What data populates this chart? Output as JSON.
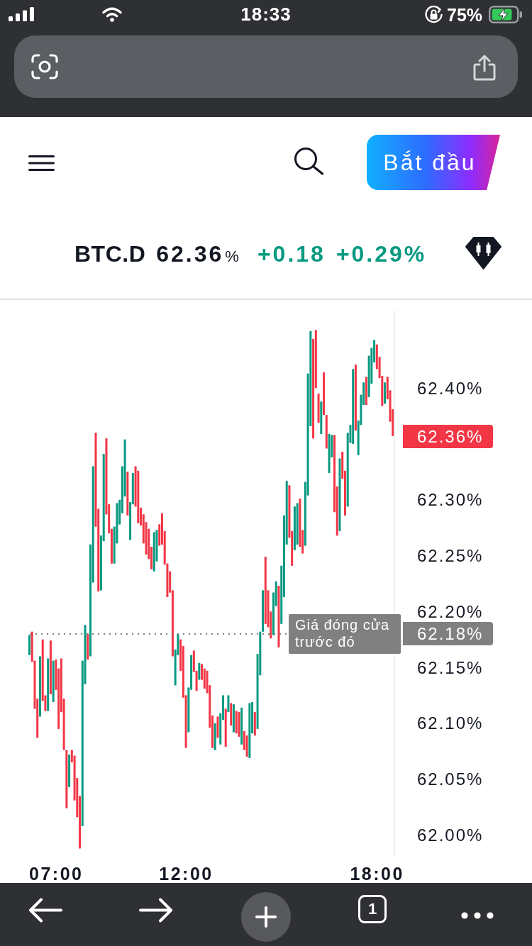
{
  "chart_data": {
    "type": "candlestick",
    "title": "BTC.D",
    "categories": [
      null,
      null,
      null,
      null,
      null,
      null,
      null,
      null,
      null,
      null,
      "07:00",
      null,
      null,
      null,
      null,
      null,
      null,
      null,
      null,
      null,
      null,
      null,
      null,
      null,
      null,
      null,
      null,
      null,
      null,
      null,
      null,
      null,
      null,
      null,
      null,
      null,
      null,
      null,
      null,
      null,
      null,
      null,
      null,
      null,
      null,
      null,
      null,
      null,
      null,
      null,
      null,
      null,
      null,
      null,
      null,
      null,
      null,
      null,
      null,
      "12:00",
      null,
      null,
      null,
      null,
      null,
      null,
      null,
      null,
      null,
      null,
      null,
      null,
      null,
      null,
      null,
      null,
      null,
      null,
      null,
      null,
      null,
      null,
      null,
      null,
      null,
      null,
      null,
      null,
      null,
      null,
      null,
      null,
      null,
      null,
      null,
      null,
      null,
      null,
      null,
      null,
      null,
      null,
      null,
      null,
      null,
      null,
      null,
      null,
      null,
      null,
      null,
      null,
      null,
      null,
      null,
      null,
      null,
      null,
      null,
      null,
      null,
      null,
      null,
      null,
      null,
      null,
      null,
      null,
      null,
      null,
      null,
      "18:00",
      null,
      null,
      null,
      null,
      null,
      null
    ],
    "ohlc": [
      [
        62.161,
        62.179,
        62.161,
        62.179
      ],
      [
        62.182,
        62.182,
        62.155,
        62.155
      ],
      [
        62.156,
        62.156,
        62.113,
        62.113
      ],
      [
        62.122,
        62.122,
        62.087,
        62.087
      ],
      [
        62.106,
        62.16,
        62.106,
        62.16
      ],
      [
        62.175,
        62.175,
        62.12,
        62.12
      ],
      [
        62.125,
        62.125,
        62.111,
        62.111
      ],
      [
        62.111,
        62.158,
        62.111,
        62.158
      ],
      [
        62.174,
        62.174,
        62.126,
        62.126
      ],
      [
        62.119,
        62.156,
        62.119,
        62.156
      ],
      [
        62.157,
        62.157,
        62.13,
        62.13
      ],
      [
        62.149,
        62.149,
        62.095,
        62.095
      ],
      [
        62.158,
        62.158,
        62.11,
        62.11
      ],
      [
        62.122,
        62.122,
        62.076,
        62.076
      ],
      [
        62.076,
        62.076,
        62.024,
        62.024
      ],
      [
        62.043,
        62.072,
        62.043,
        62.072
      ],
      [
        62.076,
        62.076,
        62.065,
        62.065
      ],
      [
        62.071,
        62.071,
        62.031,
        62.031
      ],
      [
        62.051,
        62.051,
        62.016,
        62.016
      ],
      [
        62.035,
        62.035,
        61.988,
        61.988
      ],
      [
        62.008,
        62.156,
        62.008,
        62.156
      ],
      [
        62.135,
        62.188,
        62.135,
        62.188
      ],
      [
        62.18,
        62.18,
        62.157,
        62.157
      ],
      [
        62.16,
        62.26,
        62.16,
        62.26
      ],
      [
        62.226,
        62.33,
        62.226,
        62.33
      ],
      [
        62.36,
        62.36,
        62.276,
        62.276
      ],
      [
        62.292,
        62.292,
        62.218,
        62.218
      ],
      [
        62.219,
        62.268,
        62.219,
        62.268
      ],
      [
        62.263,
        62.341,
        62.263,
        62.341
      ],
      [
        62.355,
        62.355,
        62.287,
        62.287
      ],
      [
        62.296,
        62.296,
        62.27,
        62.27
      ],
      [
        62.274,
        62.274,
        62.243,
        62.243
      ],
      [
        62.243,
        62.276,
        62.243,
        62.276
      ],
      [
        62.261,
        62.297,
        62.261,
        62.297
      ],
      [
        62.278,
        62.3,
        62.278,
        62.3
      ],
      [
        62.288,
        62.33,
        62.288,
        62.33
      ],
      [
        62.303,
        62.354,
        62.303,
        62.354
      ],
      [
        62.325,
        62.325,
        62.286,
        62.286
      ],
      [
        62.264,
        62.298,
        62.264,
        62.298
      ],
      [
        62.296,
        62.324,
        62.296,
        62.324
      ],
      [
        62.33,
        62.33,
        62.294,
        62.294
      ],
      [
        62.326,
        62.326,
        62.279,
        62.279
      ],
      [
        62.293,
        62.293,
        62.277,
        62.277
      ],
      [
        62.287,
        62.287,
        62.261,
        62.261
      ],
      [
        62.28,
        62.28,
        62.251,
        62.251
      ],
      [
        62.274,
        62.274,
        62.247,
        62.247
      ],
      [
        62.258,
        62.258,
        62.238,
        62.238
      ],
      [
        62.236,
        62.271,
        62.236,
        62.271
      ],
      [
        62.245,
        62.273,
        62.245,
        62.273
      ],
      [
        62.278,
        62.278,
        62.259,
        62.259
      ],
      [
        62.288,
        62.288,
        62.26,
        62.26
      ],
      [
        62.272,
        62.272,
        62.242,
        62.242
      ],
      [
        62.243,
        62.243,
        62.213,
        62.213
      ],
      [
        62.236,
        62.236,
        62.217,
        62.217
      ],
      [
        62.219,
        62.219,
        62.16,
        62.16
      ],
      [
        62.134,
        62.166,
        62.134,
        62.166
      ],
      [
        62.161,
        62.18,
        62.161,
        62.18
      ],
      [
        62.175,
        62.175,
        62.147,
        62.147
      ],
      [
        62.169,
        62.169,
        62.123,
        62.123
      ],
      [
        62.125,
        62.125,
        62.078,
        62.078
      ],
      [
        62.092,
        62.132,
        62.092,
        62.132
      ],
      [
        62.13,
        62.161,
        62.13,
        62.161
      ],
      [
        62.165,
        62.165,
        62.146,
        62.146
      ],
      [
        62.147,
        62.147,
        62.129,
        62.129
      ],
      [
        62.139,
        62.154,
        62.139,
        62.154
      ],
      [
        62.153,
        62.153,
        62.139,
        62.139
      ],
      [
        62.149,
        62.149,
        62.131,
        62.131
      ],
      [
        62.147,
        62.147,
        62.127,
        62.127
      ],
      [
        62.134,
        62.134,
        62.096,
        62.096
      ],
      [
        62.107,
        62.107,
        62.078,
        62.078
      ],
      [
        62.076,
        62.1,
        62.076,
        62.1
      ],
      [
        62.106,
        62.106,
        62.087,
        62.087
      ],
      [
        62.081,
        62.109,
        62.081,
        62.109
      ],
      [
        62.103,
        62.125,
        62.103,
        62.125
      ],
      [
        62.113,
        62.113,
        62.079,
        62.079
      ],
      [
        62.11,
        62.125,
        62.11,
        62.125
      ],
      [
        62.118,
        62.118,
        62.098,
        62.098
      ],
      [
        62.092,
        62.117,
        62.092,
        62.117
      ],
      [
        62.111,
        62.111,
        62.091,
        62.091
      ],
      [
        62.11,
        62.11,
        62.088,
        62.088
      ],
      [
        62.081,
        62.114,
        62.081,
        62.114
      ],
      [
        62.093,
        62.093,
        62.076,
        62.076
      ],
      [
        62.089,
        62.089,
        62.07,
        62.07
      ],
      [
        62.069,
        62.118,
        62.069,
        62.118
      ],
      [
        62.091,
        62.119,
        62.091,
        62.119
      ],
      [
        62.11,
        62.11,
        62.089,
        62.089
      ],
      [
        62.095,
        62.162,
        62.095,
        62.162
      ],
      [
        62.143,
        62.182,
        62.143,
        62.182
      ],
      [
        62.182,
        62.219,
        62.182,
        62.219
      ],
      [
        62.249,
        62.249,
        62.189,
        62.189
      ],
      [
        62.219,
        62.219,
        62.186,
        62.186
      ],
      [
        62.2,
        62.2,
        62.176,
        62.176
      ],
      [
        62.179,
        62.217,
        62.179,
        62.217
      ],
      [
        62.205,
        62.227,
        62.205,
        62.227
      ],
      [
        62.223,
        62.223,
        62.168,
        62.168
      ],
      [
        62.189,
        62.241,
        62.189,
        62.241
      ],
      [
        62.213,
        62.286,
        62.213,
        62.286
      ],
      [
        62.26,
        62.317,
        62.26,
        62.317
      ],
      [
        62.313,
        62.313,
        62.266,
        62.266
      ],
      [
        62.272,
        62.272,
        62.241,
        62.241
      ],
      [
        62.255,
        62.294,
        62.255,
        62.294
      ],
      [
        62.26,
        62.297,
        62.26,
        62.297
      ],
      [
        62.301,
        62.301,
        62.258,
        62.258
      ],
      [
        62.273,
        62.273,
        62.252,
        62.252
      ],
      [
        62.259,
        62.316,
        62.259,
        62.316
      ],
      [
        62.304,
        62.413,
        62.304,
        62.413
      ],
      [
        62.366,
        62.451,
        62.366,
        62.451
      ],
      [
        62.444,
        62.444,
        62.355,
        62.355
      ],
      [
        62.452,
        62.452,
        62.4,
        62.4
      ],
      [
        62.395,
        62.395,
        62.369,
        62.369
      ],
      [
        62.359,
        62.388,
        62.359,
        62.388
      ],
      [
        62.414,
        62.414,
        62.376,
        62.376
      ],
      [
        62.376,
        62.376,
        62.346,
        62.346
      ],
      [
        62.324,
        62.359,
        62.324,
        62.359
      ],
      [
        62.338,
        62.358,
        62.338,
        62.358
      ],
      [
        62.358,
        62.358,
        62.289,
        62.289
      ],
      [
        62.312,
        62.312,
        62.268,
        62.268
      ],
      [
        62.272,
        62.337,
        62.272,
        62.337
      ],
      [
        62.343,
        62.343,
        62.319,
        62.319
      ],
      [
        62.326,
        62.326,
        62.286,
        62.286
      ],
      [
        62.294,
        62.36,
        62.294,
        62.36
      ],
      [
        62.351,
        62.367,
        62.351,
        62.367
      ],
      [
        62.35,
        62.417,
        62.35,
        62.417
      ],
      [
        62.421,
        62.421,
        62.362,
        62.362
      ],
      [
        62.34,
        62.371,
        62.34,
        62.371
      ],
      [
        62.367,
        62.394,
        62.367,
        62.394
      ],
      [
        62.385,
        62.405,
        62.385,
        62.405
      ],
      [
        62.41,
        62.41,
        62.385,
        62.385
      ],
      [
        62.392,
        62.429,
        62.392,
        62.429
      ],
      [
        62.404,
        62.436,
        62.404,
        62.436
      ],
      [
        62.423,
        62.443,
        62.423,
        62.443
      ],
      [
        62.439,
        62.439,
        62.417,
        62.417
      ],
      [
        62.428,
        62.428,
        62.409,
        62.409
      ],
      [
        62.411,
        62.411,
        62.384,
        62.384
      ],
      [
        62.386,
        62.405,
        62.386,
        62.405
      ],
      [
        62.41,
        62.41,
        62.39,
        62.39
      ],
      [
        62.398,
        62.398,
        62.37,
        62.37
      ],
      [
        62.381,
        62.381,
        62.357,
        62.357
      ]
    ],
    "colors": [
      "#089981",
      "#f23645",
      "#f23645",
      "#f23645",
      "#089981",
      "#f23645",
      "#f23645",
      "#089981",
      "#f23645",
      "#089981",
      "#f23645",
      "#f23645",
      "#f23645",
      "#f23645",
      "#f23645",
      "#089981",
      "#f23645",
      "#f23645",
      "#f23645",
      "#f23645",
      "#089981",
      "#089981",
      "#f23645",
      "#089981",
      "#089981",
      "#f23645",
      "#f23645",
      "#089981",
      "#089981",
      "#f23645",
      "#f23645",
      "#f23645",
      "#089981",
      "#089981",
      "#089981",
      "#089981",
      "#089981",
      "#f23645",
      "#089981",
      "#089981",
      "#f23645",
      "#f23645",
      "#f23645",
      "#f23645",
      "#f23645",
      "#f23645",
      "#f23645",
      "#089981",
      "#089981",
      "#f23645",
      "#f23645",
      "#f23645",
      "#f23645",
      "#f23645",
      "#f23645",
      "#089981",
      "#089981",
      "#f23645",
      "#f23645",
      "#f23645",
      "#089981",
      "#089981",
      "#f23645",
      "#f23645",
      "#089981",
      "#f23645",
      "#f23645",
      "#f23645",
      "#f23645",
      "#f23645",
      "#089981",
      "#f23645",
      "#089981",
      "#089981",
      "#f23645",
      "#089981",
      "#f23645",
      "#089981",
      "#f23645",
      "#f23645",
      "#089981",
      "#f23645",
      "#f23645",
      "#089981",
      "#089981",
      "#f23645",
      "#089981",
      "#089981",
      "#089981",
      "#f23645",
      "#f23645",
      "#f23645",
      "#089981",
      "#089981",
      "#f23645",
      "#089981",
      "#089981",
      "#089981",
      "#f23645",
      "#f23645",
      "#089981",
      "#089981",
      "#f23645",
      "#f23645",
      "#089981",
      "#089981",
      "#089981",
      "#f23645",
      "#f23645",
      "#f23645",
      "#089981",
      "#f23645",
      "#f23645",
      "#089981",
      "#089981",
      "#f23645",
      "#f23645",
      "#089981",
      "#f23645",
      "#f23645",
      "#089981",
      "#089981",
      "#089981",
      "#f23645",
      "#089981",
      "#089981",
      "#089981",
      "#f23645",
      "#089981",
      "#089981",
      "#089981",
      "#f23645",
      "#f23645",
      "#f23645",
      "#089981",
      "#f23645",
      "#f23645",
      "#f23645"
    ],
    "ylim": [
      61.98,
      62.47
    ],
    "yticks": [
      {
        "value": 62.0,
        "label": "62.00%"
      },
      {
        "value": 62.05,
        "label": "62.05%"
      },
      {
        "value": 62.1,
        "label": "62.10%"
      },
      {
        "value": 62.15,
        "label": "62.15%"
      },
      {
        "value": 62.2,
        "label": "62.20%"
      },
      {
        "value": 62.25,
        "label": "62.25%"
      },
      {
        "value": 62.3,
        "label": "62.30%"
      },
      {
        "value": 62.4,
        "label": "62.40%"
      }
    ],
    "ref_lines": [
      {
        "axis": "y",
        "value": 62.18,
        "label": "Giá đóng cửa trước đó",
        "color": "#808080",
        "line_style": "dotted"
      }
    ],
    "annotations": [
      "18:33",
      "75%",
      "Bắt đầu",
      "62.36",
      "%",
      "+0.18",
      "+0.29%",
      "1",
      "62.36%",
      "62.18%"
    ]
  }
}
